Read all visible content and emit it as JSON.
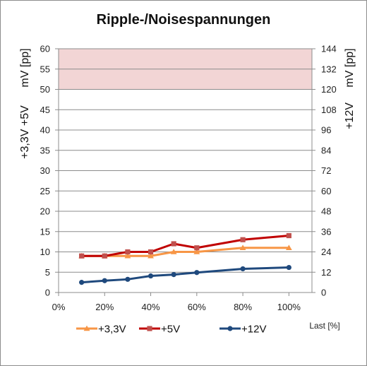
{
  "chart_data": {
    "type": "line",
    "title": "Ripple-/Noisespannungen",
    "xlabel": "Last [%]",
    "y_left_label_top": "mV [pp]",
    "y_left_label_bottom": "+3,3V +5V",
    "y_right_label_top": "mV [pp]",
    "y_right_label_bottom": "+12V",
    "xlim": [
      0,
      110
    ],
    "x_ticks": [
      0,
      20,
      40,
      60,
      80,
      100
    ],
    "x_tick_labels": [
      "0%",
      "20%",
      "40%",
      "60%",
      "80%",
      "100%"
    ],
    "ylim_left": [
      0,
      60
    ],
    "y_left_ticks": [
      0,
      5,
      10,
      15,
      20,
      25,
      30,
      35,
      40,
      45,
      50,
      55,
      60
    ],
    "y_left_tick_labels": [
      "0",
      "5",
      "10",
      "15",
      "20",
      "25",
      "30",
      "35",
      "40",
      "45",
      "50",
      "55",
      "60"
    ],
    "ylim_right": [
      0,
      144
    ],
    "y_right_ticks": [
      0,
      12,
      24,
      36,
      48,
      60,
      72,
      84,
      96,
      108,
      120,
      132,
      144
    ],
    "y_right_tick_labels": [
      "0",
      "12",
      "24",
      "36",
      "48",
      "60",
      "72",
      "84",
      "96",
      "108",
      "120",
      "132",
      "144"
    ],
    "limit_band_left": [
      50,
      60
    ],
    "grid": true,
    "legend_position": "bottom",
    "series": [
      {
        "name": "+3,3V",
        "axis": "left",
        "color": "#f79646",
        "marker": "triangle",
        "x": [
          10,
          20,
          30,
          40,
          50,
          60,
          80,
          100
        ],
        "y": [
          9,
          9,
          9,
          9,
          10,
          10,
          11,
          11
        ]
      },
      {
        "name": "+5V",
        "axis": "left",
        "color": "#c0504d",
        "line_color": "#c00000",
        "marker": "square",
        "x": [
          10,
          20,
          30,
          40,
          50,
          60,
          80,
          100
        ],
        "y": [
          9,
          9,
          10,
          10,
          12,
          11,
          13,
          14
        ]
      },
      {
        "name": "+12V",
        "axis": "right",
        "color": "#1f497d",
        "marker": "circle",
        "x": [
          10,
          20,
          30,
          40,
          50,
          60,
          80,
          100
        ],
        "y": [
          6,
          7,
          7.8,
          9.8,
          10.6,
          11.8,
          14,
          14.8
        ]
      }
    ]
  }
}
